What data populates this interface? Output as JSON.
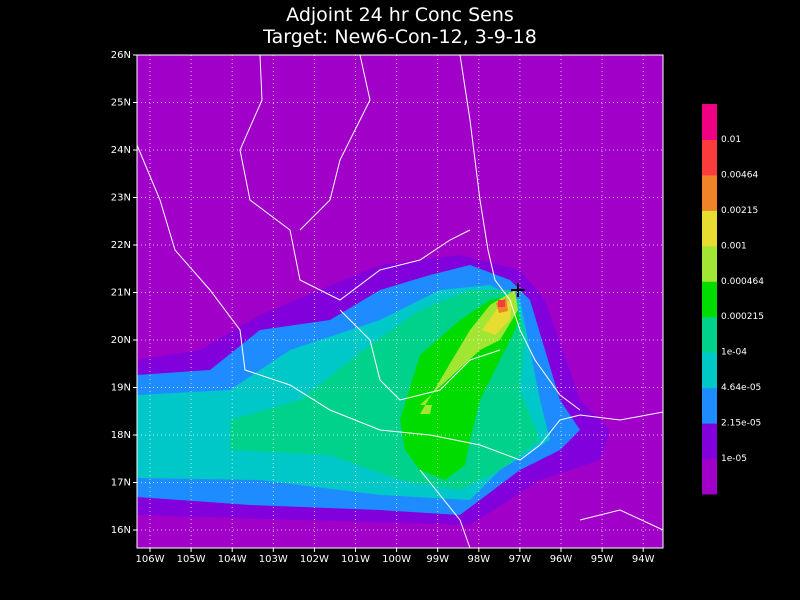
{
  "title": [
    "Adjoint 24 hr Conc Sens",
    "Target: New6-Con-12, 3-9-18"
  ],
  "lon_labels": [
    "106W",
    "105W",
    "104W",
    "103W",
    "102W",
    "101W",
    "100W",
    "99W",
    "98W",
    "97W",
    "96W",
    "95W",
    "94W"
  ],
  "lat_labels": [
    "16N",
    "17N",
    "18N",
    "19N",
    "20N",
    "21N",
    "22N",
    "23N",
    "24N",
    "25N",
    "26N"
  ],
  "colorbar": {
    "labels": [
      "1e-05",
      "2.15e-05",
      "4.64e-05",
      "1e-04",
      "0.000215",
      "0.000464",
      "0.001",
      "0.00215",
      "0.00464",
      "0.01"
    ],
    "colors": [
      "#a000c8",
      "#8200dc",
      "#1e8cff",
      "#00c8c8",
      "#00d28c",
      "#00dc00",
      "#a0e632",
      "#e6dc32",
      "#f08228",
      "#fa3c3c",
      "#f00082"
    ]
  }
}
